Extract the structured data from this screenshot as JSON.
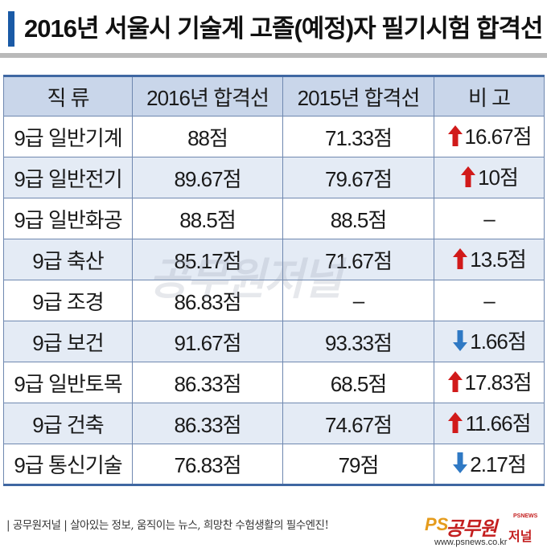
{
  "title": "2016년 서울시 기술계 고졸(예정)자 필기시험 합격선",
  "table": {
    "headers": [
      "직 류",
      "2016년 합격선",
      "2015년 합격선",
      "비 고"
    ],
    "rows": [
      {
        "job": "9급 일반기계",
        "y2016": "88점",
        "y2015": "71.33점",
        "direction": "up",
        "diff": "16.67점"
      },
      {
        "job": "9급 일반전기",
        "y2016": "89.67점",
        "y2015": "79.67점",
        "direction": "up",
        "diff": "10점"
      },
      {
        "job": "9급 일반화공",
        "y2016": "88.5점",
        "y2015": "88.5점",
        "direction": "none",
        "diff": "–"
      },
      {
        "job": "9급 축산",
        "y2016": "85.17점",
        "y2015": "71.67점",
        "direction": "up",
        "diff": "13.5점"
      },
      {
        "job": "9급 조경",
        "y2016": "86.83점",
        "y2015": "–",
        "direction": "none",
        "diff": "–"
      },
      {
        "job": "9급 보건",
        "y2016": "91.67점",
        "y2015": "93.33점",
        "direction": "down",
        "diff": "1.66점"
      },
      {
        "job": "9급 일반토목",
        "y2016": "86.33점",
        "y2015": "68.5점",
        "direction": "up",
        "diff": "17.83점"
      },
      {
        "job": "9급 건축",
        "y2016": "86.33점",
        "y2015": "74.67점",
        "direction": "up",
        "diff": "11.66점"
      },
      {
        "job": "9급 통신기술",
        "y2016": "76.83점",
        "y2015": "79점",
        "direction": "down",
        "diff": "2.17점"
      }
    ]
  },
  "colors": {
    "up_arrow": "#d11a1a",
    "down_arrow": "#2f79c4",
    "header_bg": "#c9d6ea",
    "accent": "#1a5aa6"
  },
  "watermark": "공무원저널",
  "footer": {
    "tagline": "| 공무원저널 |  살아있는 정보, 움직이는 뉴스, 희망찬 수험생활의 필수엔진!",
    "logo_ps": "PS",
    "logo_name": "공무원",
    "logo_tag": "PSNEWS",
    "logo_sub": "저널",
    "logo_url": "www.psnews.co.kr"
  }
}
